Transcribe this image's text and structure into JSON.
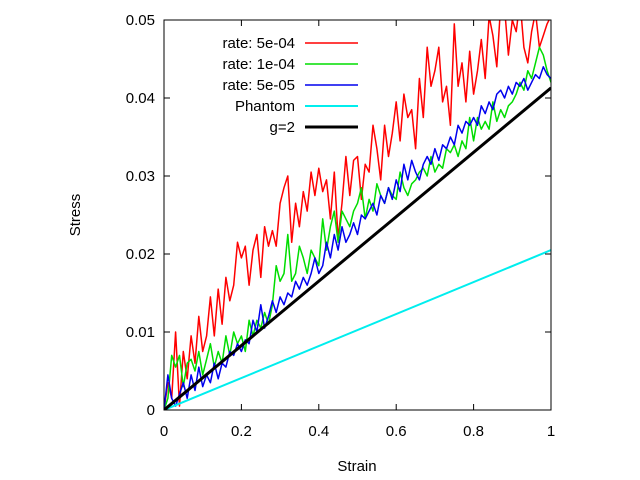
{
  "chart_data": {
    "type": "line",
    "title": "",
    "xlabel": "Strain",
    "ylabel": "Stress",
    "xlim": [
      0,
      1
    ],
    "ylim": [
      0,
      0.05
    ],
    "xticks": [
      0,
      0.2,
      0.4,
      0.6,
      0.8,
      1
    ],
    "xtick_labels": [
      "0",
      "0.2",
      "0.4",
      "0.6",
      "0.8",
      "1"
    ],
    "yticks": [
      0,
      0.01,
      0.02,
      0.03,
      0.04,
      0.05
    ],
    "ytick_labels": [
      "0",
      "0.01",
      "0.02",
      "0.03",
      "0.04",
      "0.05"
    ],
    "grid": false,
    "legend_position": "top-left",
    "series": [
      {
        "name": "rate: 5e-04",
        "color": "#ff0000",
        "width": 1.5,
        "x": [
          0,
          0.01,
          0.02,
          0.03,
          0.04,
          0.05,
          0.06,
          0.07,
          0.08,
          0.09,
          0.1,
          0.11,
          0.12,
          0.13,
          0.14,
          0.15,
          0.16,
          0.17,
          0.18,
          0.19,
          0.2,
          0.21,
          0.22,
          0.23,
          0.24,
          0.25,
          0.26,
          0.27,
          0.28,
          0.29,
          0.3,
          0.31,
          0.32,
          0.33,
          0.34,
          0.35,
          0.36,
          0.37,
          0.38,
          0.39,
          0.4,
          0.41,
          0.42,
          0.43,
          0.44,
          0.45,
          0.46,
          0.47,
          0.48,
          0.49,
          0.5,
          0.51,
          0.52,
          0.53,
          0.54,
          0.55,
          0.56,
          0.57,
          0.58,
          0.59,
          0.6,
          0.61,
          0.62,
          0.63,
          0.64,
          0.65,
          0.66,
          0.67,
          0.68,
          0.69,
          0.7,
          0.71,
          0.72,
          0.73,
          0.74,
          0.75,
          0.76,
          0.77,
          0.78,
          0.79,
          0.8,
          0.81,
          0.82,
          0.83,
          0.84,
          0.85,
          0.86,
          0.87,
          0.88,
          0.89,
          0.9,
          0.91,
          0.92,
          0.93,
          0.94,
          0.95,
          0.96,
          0.97,
          0.98,
          0.99,
          1.0
        ],
        "y": [
          0.0,
          0.0035,
          0.0015,
          0.01,
          0.0005,
          0.0075,
          0.004,
          0.0095,
          0.006,
          0.012,
          0.0075,
          0.0095,
          0.0145,
          0.0095,
          0.0155,
          0.011,
          0.017,
          0.014,
          0.016,
          0.0215,
          0.0195,
          0.021,
          0.016,
          0.0205,
          0.0225,
          0.017,
          0.0235,
          0.021,
          0.023,
          0.021,
          0.0265,
          0.0285,
          0.03,
          0.0215,
          0.0265,
          0.0235,
          0.028,
          0.0255,
          0.0305,
          0.0275,
          0.031,
          0.028,
          0.0295,
          0.0245,
          0.0305,
          0.022,
          0.0265,
          0.0325,
          0.0275,
          0.032,
          0.0325,
          0.027,
          0.0315,
          0.0305,
          0.0365,
          0.0335,
          0.0295,
          0.0365,
          0.0325,
          0.0355,
          0.0395,
          0.0345,
          0.0405,
          0.0375,
          0.0385,
          0.0335,
          0.0425,
          0.0375,
          0.0465,
          0.0415,
          0.0435,
          0.0465,
          0.0395,
          0.0415,
          0.0365,
          0.0495,
          0.0415,
          0.0445,
          0.0395,
          0.046,
          0.0405,
          0.0435,
          0.0475,
          0.0425,
          0.0505,
          0.048,
          0.044,
          0.052,
          0.0515,
          0.0455,
          0.05,
          0.0485,
          0.0525,
          0.0465,
          0.0445,
          0.0485,
          0.051,
          0.0465,
          0.048,
          0.0495,
          0.0505
        ]
      },
      {
        "name": "rate: 1e-04",
        "color": "#00dd00",
        "width": 1.5,
        "x": [
          0,
          0.01,
          0.02,
          0.03,
          0.04,
          0.05,
          0.06,
          0.07,
          0.08,
          0.09,
          0.1,
          0.11,
          0.12,
          0.13,
          0.14,
          0.15,
          0.16,
          0.17,
          0.18,
          0.19,
          0.2,
          0.21,
          0.22,
          0.23,
          0.24,
          0.25,
          0.26,
          0.27,
          0.28,
          0.29,
          0.3,
          0.31,
          0.32,
          0.33,
          0.34,
          0.35,
          0.36,
          0.37,
          0.38,
          0.39,
          0.4,
          0.41,
          0.42,
          0.43,
          0.44,
          0.45,
          0.46,
          0.47,
          0.48,
          0.49,
          0.5,
          0.51,
          0.52,
          0.53,
          0.54,
          0.55,
          0.56,
          0.57,
          0.58,
          0.59,
          0.6,
          0.61,
          0.62,
          0.63,
          0.64,
          0.65,
          0.66,
          0.67,
          0.68,
          0.69,
          0.7,
          0.71,
          0.72,
          0.73,
          0.74,
          0.75,
          0.76,
          0.77,
          0.78,
          0.79,
          0.8,
          0.81,
          0.82,
          0.83,
          0.84,
          0.85,
          0.86,
          0.87,
          0.88,
          0.89,
          0.9,
          0.91,
          0.92,
          0.93,
          0.94,
          0.95,
          0.96,
          0.97,
          0.98,
          0.99,
          1.0
        ],
        "y": [
          0.0,
          0.0015,
          0.007,
          0.0055,
          0.007,
          0.003,
          0.006,
          0.0065,
          0.005,
          0.0075,
          0.0045,
          0.0065,
          0.0085,
          0.0055,
          0.0075,
          0.006,
          0.0095,
          0.007,
          0.01,
          0.0085,
          0.0095,
          0.0075,
          0.0115,
          0.0095,
          0.0115,
          0.0105,
          0.0125,
          0.011,
          0.0135,
          0.0185,
          0.0165,
          0.0175,
          0.0225,
          0.0165,
          0.0175,
          0.021,
          0.0195,
          0.0175,
          0.0205,
          0.0195,
          0.0185,
          0.0245,
          0.0205,
          0.0235,
          0.0255,
          0.0215,
          0.0255,
          0.0245,
          0.0235,
          0.0255,
          0.0265,
          0.0285,
          0.0245,
          0.027,
          0.0255,
          0.029,
          0.0275,
          0.0265,
          0.0285,
          0.0275,
          0.027,
          0.0305,
          0.0285,
          0.0275,
          0.029,
          0.0295,
          0.0305,
          0.031,
          0.03,
          0.0325,
          0.0305,
          0.0315,
          0.031,
          0.0335,
          0.033,
          0.034,
          0.0325,
          0.0345,
          0.0335,
          0.0375,
          0.0345,
          0.0375,
          0.036,
          0.037,
          0.036,
          0.0395,
          0.037,
          0.0385,
          0.0375,
          0.039,
          0.0395,
          0.0405,
          0.042,
          0.041,
          0.0435,
          0.0425,
          0.0445,
          0.0465,
          0.0455,
          0.0435,
          0.042
        ]
      },
      {
        "name": "rate: 5e-05",
        "color": "#0000ee",
        "width": 1.5,
        "x": [
          0,
          0.01,
          0.02,
          0.03,
          0.04,
          0.05,
          0.06,
          0.07,
          0.08,
          0.09,
          0.1,
          0.11,
          0.12,
          0.13,
          0.14,
          0.15,
          0.16,
          0.17,
          0.18,
          0.19,
          0.2,
          0.21,
          0.22,
          0.23,
          0.24,
          0.25,
          0.26,
          0.27,
          0.28,
          0.29,
          0.3,
          0.31,
          0.32,
          0.33,
          0.34,
          0.35,
          0.36,
          0.37,
          0.38,
          0.39,
          0.4,
          0.41,
          0.42,
          0.43,
          0.44,
          0.45,
          0.46,
          0.47,
          0.48,
          0.49,
          0.5,
          0.51,
          0.52,
          0.53,
          0.54,
          0.55,
          0.56,
          0.57,
          0.58,
          0.59,
          0.6,
          0.61,
          0.62,
          0.63,
          0.64,
          0.65,
          0.66,
          0.67,
          0.68,
          0.69,
          0.7,
          0.71,
          0.72,
          0.73,
          0.74,
          0.75,
          0.76,
          0.77,
          0.78,
          0.79,
          0.8,
          0.81,
          0.82,
          0.83,
          0.84,
          0.85,
          0.86,
          0.87,
          0.88,
          0.89,
          0.9,
          0.91,
          0.92,
          0.93,
          0.94,
          0.95,
          0.96,
          0.97,
          0.98,
          0.99,
          1.0
        ],
        "y": [
          0.0,
          0.0045,
          0.0015,
          0.0005,
          0.002,
          0.0035,
          0.0015,
          0.0045,
          0.0025,
          0.0055,
          0.003,
          0.0045,
          0.0035,
          0.006,
          0.004,
          0.006,
          0.0055,
          0.0075,
          0.007,
          0.0085,
          0.0075,
          0.009,
          0.0085,
          0.0115,
          0.01,
          0.0135,
          0.0105,
          0.012,
          0.014,
          0.0125,
          0.0145,
          0.0135,
          0.015,
          0.0145,
          0.0165,
          0.0155,
          0.017,
          0.016,
          0.0175,
          0.0195,
          0.0175,
          0.0185,
          0.0215,
          0.0195,
          0.0225,
          0.0205,
          0.0235,
          0.0215,
          0.0225,
          0.024,
          0.0225,
          0.025,
          0.0245,
          0.0255,
          0.0265,
          0.025,
          0.0275,
          0.0265,
          0.0285,
          0.027,
          0.0295,
          0.028,
          0.0315,
          0.0295,
          0.032,
          0.0305,
          0.0295,
          0.0315,
          0.0325,
          0.0315,
          0.0335,
          0.032,
          0.034,
          0.0335,
          0.035,
          0.034,
          0.0365,
          0.0355,
          0.037,
          0.0365,
          0.0375,
          0.0365,
          0.039,
          0.038,
          0.0395,
          0.0385,
          0.0405,
          0.041,
          0.04,
          0.0415,
          0.0405,
          0.042,
          0.0415,
          0.0425,
          0.041,
          0.042,
          0.043,
          0.0425,
          0.044,
          0.043,
          0.0425
        ]
      },
      {
        "name": "Phantom",
        "color": "#00eeee",
        "width": 2,
        "x": [
          0,
          1
        ],
        "y": [
          0,
          0.0205
        ]
      },
      {
        "name": "g=2",
        "color": "#000000",
        "width": 3,
        "x": [
          0,
          1
        ],
        "y": [
          0,
          0.0413
        ]
      }
    ]
  }
}
